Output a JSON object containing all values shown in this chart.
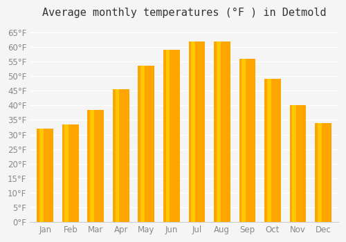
{
  "title": "Average monthly temperatures (°F ) in Detmold",
  "months": [
    "Jan",
    "Feb",
    "Mar",
    "Apr",
    "May",
    "Jun",
    "Jul",
    "Aug",
    "Sep",
    "Oct",
    "Nov",
    "Dec"
  ],
  "values": [
    32,
    33.5,
    38.5,
    45.5,
    53.5,
    59,
    62,
    62,
    56,
    49,
    40,
    34
  ],
  "bar_color_main": "#FFA500",
  "bar_color_light": "#FFD700",
  "ylim": [
    0,
    68
  ],
  "yticks": [
    0,
    5,
    10,
    15,
    20,
    25,
    30,
    35,
    40,
    45,
    50,
    55,
    60,
    65
  ],
  "background_color": "#f5f5f5",
  "grid_color": "#ffffff",
  "title_fontsize": 11,
  "tick_fontsize": 8.5
}
